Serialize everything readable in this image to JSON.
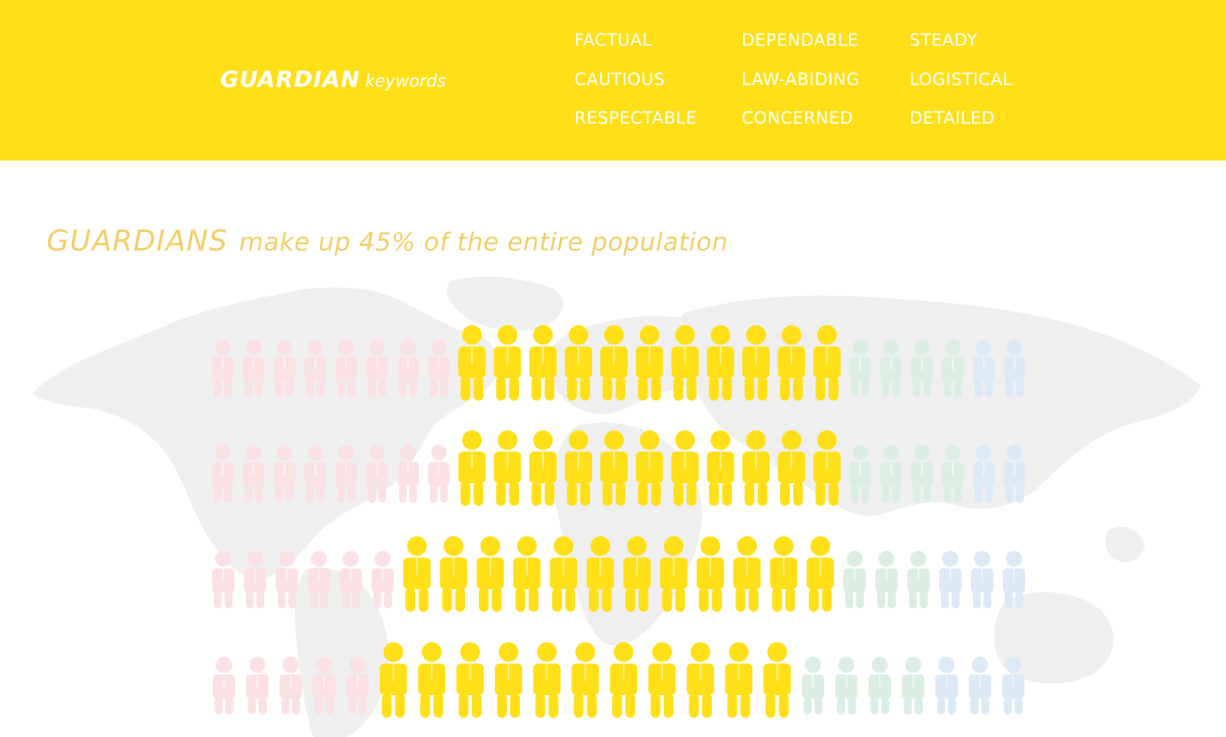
{
  "header": {
    "title": "GUARDIAN",
    "subtitle": "keywords",
    "keywords": [
      [
        "FACTUAL",
        "CAUTIOUS",
        "RESPECTABLE"
      ],
      [
        "DEPENDABLE",
        "LAW-ABIDING",
        "CONCERNED"
      ],
      [
        "STEADY",
        "LOGISTICAL",
        "DETAILED"
      ]
    ]
  },
  "headline": {
    "main": "GUARDIANS",
    "sub": "make up 45% of the entire population"
  },
  "colors": {
    "header_bg": "#FFE018",
    "guardian": "#FFE018",
    "pink": "#F9E1E4",
    "green": "#DCEEE3",
    "blue": "#DDE9F4",
    "map": "#EFEFEF",
    "headline": "#F2CF6A"
  },
  "population_rows": [
    {
      "pink": 8,
      "guardian": 11,
      "green": 4,
      "blue": 2
    },
    {
      "pink": 8,
      "guardian": 11,
      "green": 4,
      "blue": 2
    },
    {
      "pink": 6,
      "guardian": 12,
      "green": 3,
      "blue": 3
    },
    {
      "pink": 5,
      "guardian": 11,
      "green": 4,
      "blue": 3
    }
  ]
}
